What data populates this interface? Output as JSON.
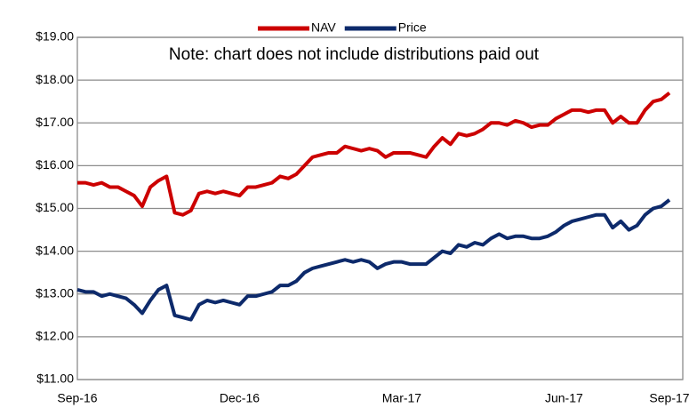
{
  "chart_data": {
    "type": "line",
    "annotation": "Note: chart does  not include distributions paid out",
    "categories": [
      "Sep-16",
      null,
      null,
      null,
      null,
      null,
      null,
      null,
      null,
      null,
      null,
      null,
      null,
      null,
      null,
      null,
      null,
      null,
      null,
      null,
      "Dec-16",
      null,
      null,
      null,
      null,
      null,
      null,
      null,
      null,
      null,
      null,
      null,
      null,
      null,
      null,
      null,
      null,
      null,
      null,
      null,
      "Mar-17",
      null,
      null,
      null,
      null,
      null,
      null,
      null,
      null,
      null,
      null,
      null,
      null,
      null,
      null,
      null,
      null,
      null,
      null,
      null,
      "Jun-17",
      null,
      null,
      null,
      null,
      null,
      null,
      null,
      null,
      null,
      null,
      null,
      null,
      "Sep-17"
    ],
    "series": [
      {
        "name": "NAV",
        "color": "#cc0000",
        "values": [
          15.6,
          15.6,
          15.55,
          15.6,
          15.5,
          15.5,
          15.4,
          15.3,
          15.05,
          15.5,
          15.65,
          15.75,
          14.9,
          14.85,
          14.95,
          15.35,
          15.4,
          15.35,
          15.4,
          15.35,
          15.3,
          15.5,
          15.5,
          15.55,
          15.6,
          15.75,
          15.7,
          15.8,
          16.0,
          16.2,
          16.25,
          16.3,
          16.3,
          16.45,
          16.4,
          16.35,
          16.4,
          16.35,
          16.2,
          16.3,
          16.3,
          16.3,
          16.25,
          16.2,
          16.45,
          16.65,
          16.5,
          16.75,
          16.7,
          16.75,
          16.85,
          17.0,
          17.0,
          16.95,
          17.05,
          17.0,
          16.9,
          16.95,
          16.95,
          17.1,
          17.2,
          17.3,
          17.3,
          17.25,
          17.3,
          17.3,
          17.0,
          17.15,
          17.0,
          17.0,
          17.3,
          17.5,
          17.55,
          17.7
        ]
      },
      {
        "name": "Price",
        "color": "#0d2a6b",
        "values": [
          13.1,
          13.05,
          13.05,
          12.95,
          13.0,
          12.95,
          12.9,
          12.75,
          12.55,
          12.85,
          13.1,
          13.2,
          12.5,
          12.45,
          12.4,
          12.75,
          12.85,
          12.8,
          12.85,
          12.8,
          12.75,
          12.95,
          12.95,
          13.0,
          13.05,
          13.2,
          13.2,
          13.3,
          13.5,
          13.6,
          13.65,
          13.7,
          13.75,
          13.8,
          13.75,
          13.8,
          13.75,
          13.6,
          13.7,
          13.75,
          13.75,
          13.7,
          13.7,
          13.7,
          13.85,
          14.0,
          13.95,
          14.15,
          14.1,
          14.2,
          14.15,
          14.3,
          14.4,
          14.3,
          14.35,
          14.35,
          14.3,
          14.3,
          14.35,
          14.45,
          14.6,
          14.7,
          14.75,
          14.8,
          14.85,
          14.85,
          14.55,
          14.7,
          14.5,
          14.6,
          14.85,
          15.0,
          15.05,
          15.2
        ]
      }
    ],
    "ylim": [
      11,
      19
    ],
    "yticks": [
      {
        "value": 11,
        "label": "$11.00"
      },
      {
        "value": 12,
        "label": "$12.00"
      },
      {
        "value": 13,
        "label": "$13.00"
      },
      {
        "value": 14,
        "label": "$14.00"
      },
      {
        "value": 15,
        "label": "$15.00"
      },
      {
        "value": 16,
        "label": "$16.00"
      },
      {
        "value": 17,
        "label": "$17.00"
      },
      {
        "value": 18,
        "label": "$18.00"
      },
      {
        "value": 19,
        "label": "$19.00"
      }
    ],
    "grid": true,
    "legend": "top"
  }
}
